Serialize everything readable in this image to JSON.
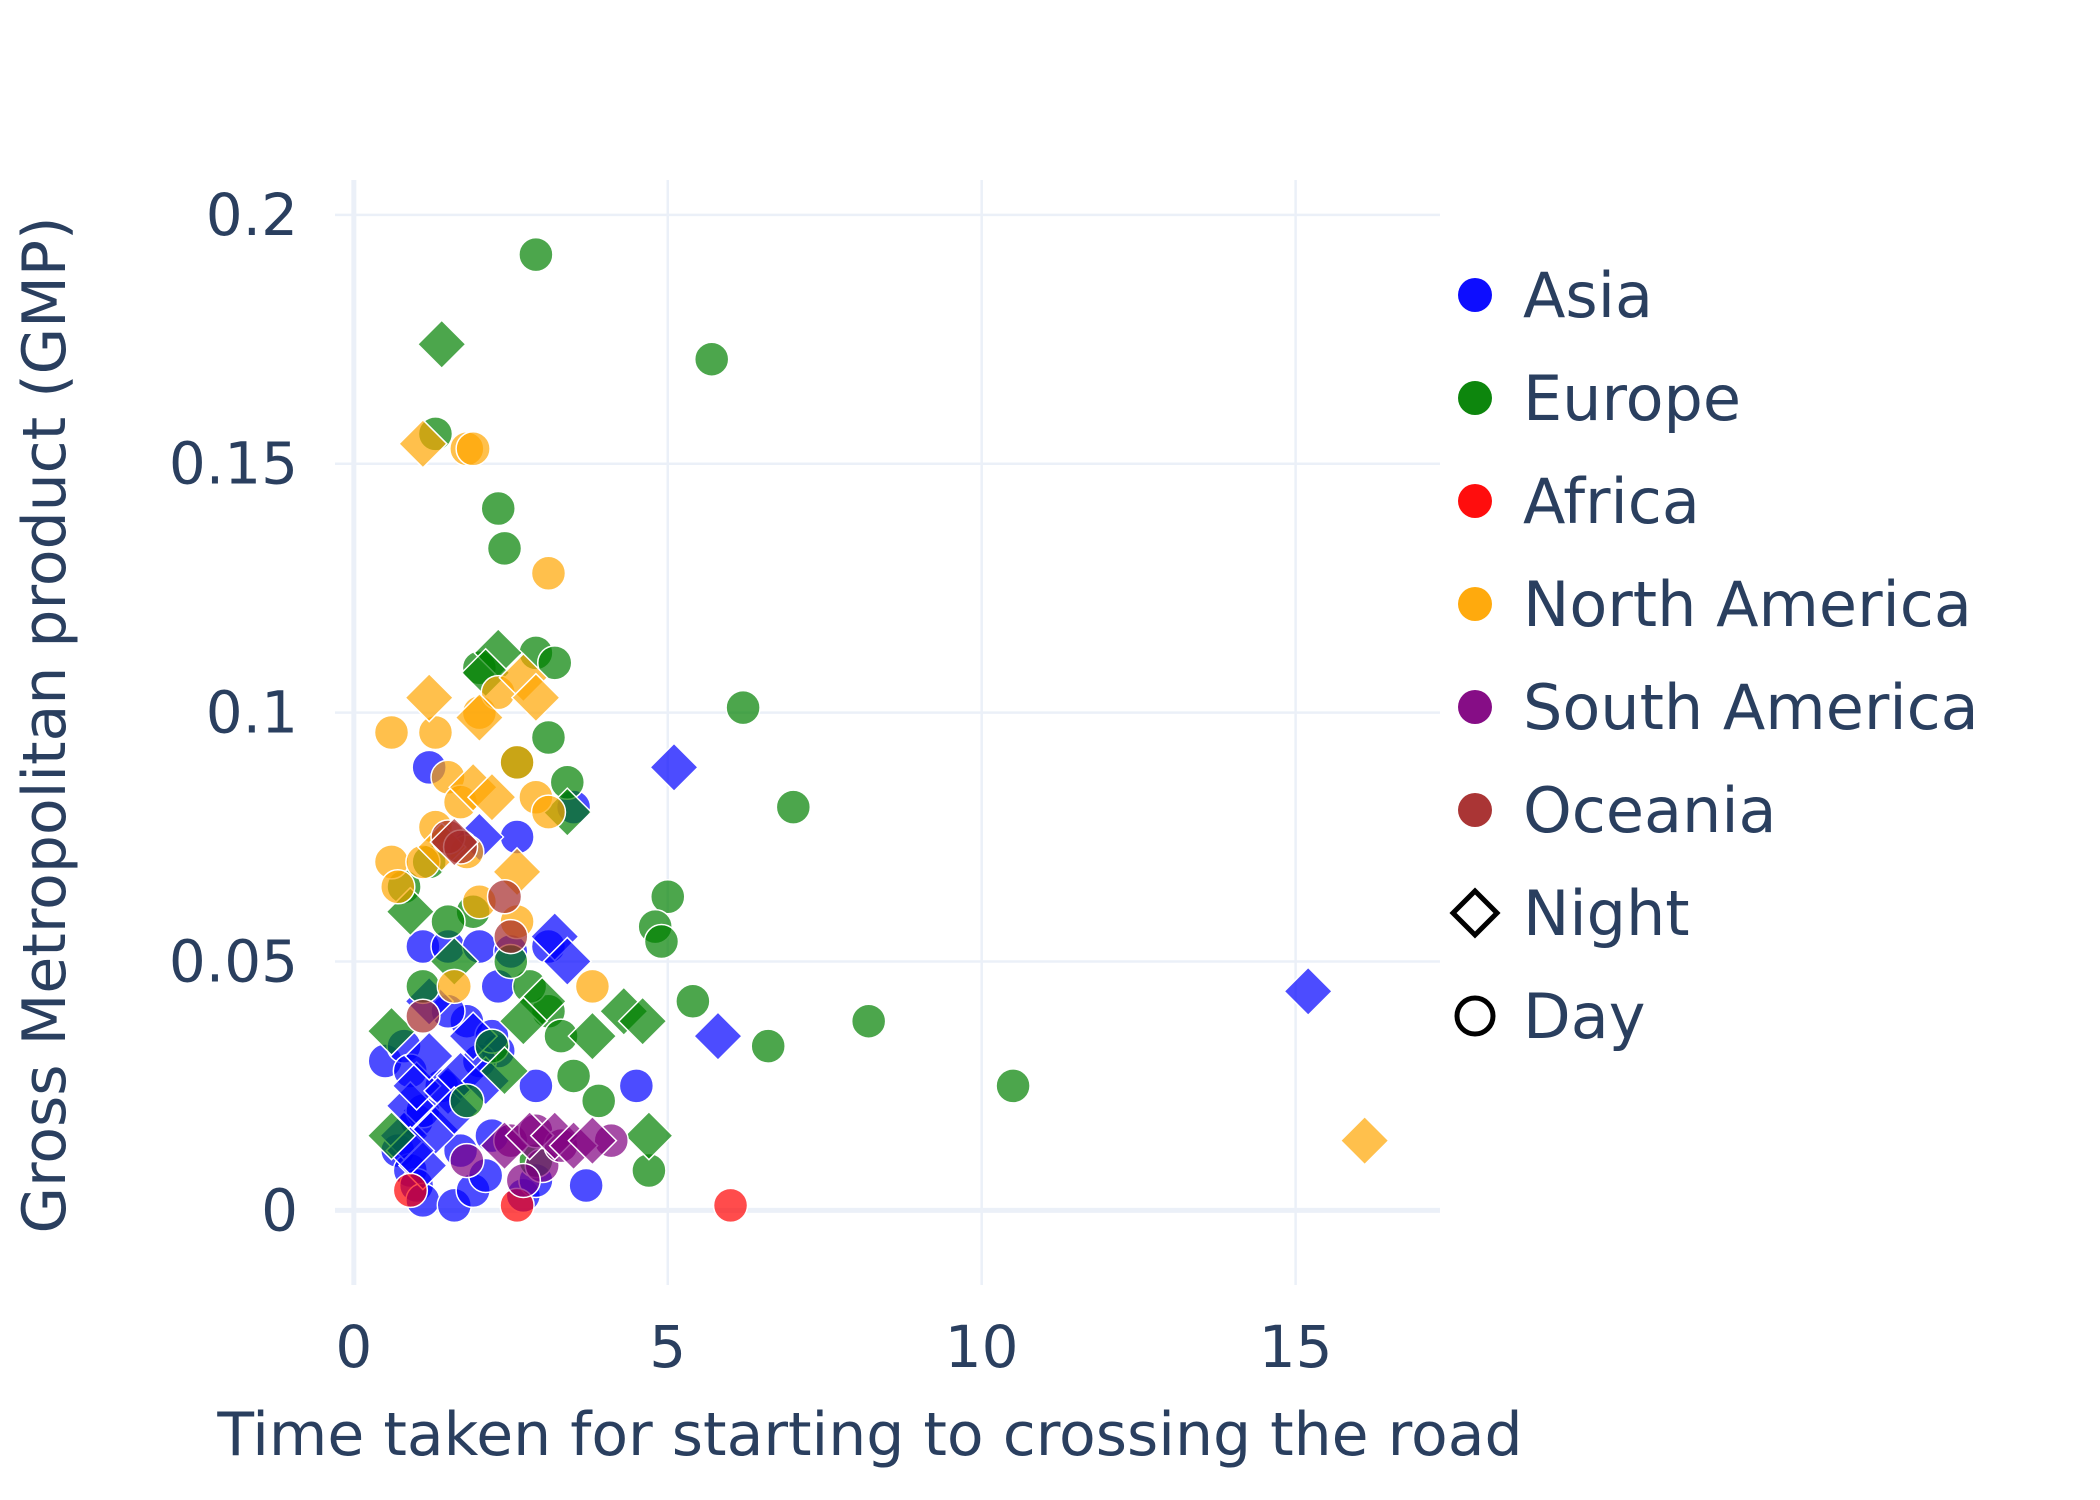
{
  "chart_data": {
    "type": "scatter",
    "title": "",
    "xlabel": "Time taken for starting to crossing the road",
    "ylabel": "Gross Metropolitan product (GMP)",
    "xlim": [
      -0.3,
      17.3
    ],
    "ylim": [
      -0.015,
      0.207
    ],
    "x_ticks": [
      0,
      5,
      10,
      15
    ],
    "y_ticks": [
      0,
      0.05,
      0.1,
      0.15,
      0.2
    ],
    "x_tick_labels": [
      "0",
      "5",
      "10",
      "15"
    ],
    "y_tick_labels": [
      "0",
      "0.05",
      "0.1",
      "0.15",
      "0.2"
    ],
    "grid": true,
    "legend_position": "right",
    "marker_opacity": 0.7,
    "symbol_legend": [
      {
        "name": "Night",
        "symbol": "diamond"
      },
      {
        "name": "Day",
        "symbol": "circle"
      }
    ],
    "series": [
      {
        "name": "Asia",
        "color": "#0000ff",
        "points": [
          [
            0.5,
            0.03,
            "circle"
          ],
          [
            0.8,
            0.033,
            "circle"
          ],
          [
            0.9,
            0.028,
            "circle"
          ],
          [
            1.0,
            0.018,
            "circle"
          ],
          [
            1.1,
            0.02,
            "circle"
          ],
          [
            0.7,
            0.012,
            "circle"
          ],
          [
            0.9,
            0.008,
            "circle"
          ],
          [
            1.0,
            0.005,
            "circle"
          ],
          [
            1.1,
            0.002,
            "circle"
          ],
          [
            1.2,
            0.089,
            "circle"
          ],
          [
            1.1,
            0.053,
            "circle"
          ],
          [
            1.5,
            0.053,
            "circle"
          ],
          [
            2.0,
            0.053,
            "circle"
          ],
          [
            1.8,
            0.038,
            "circle"
          ],
          [
            2.3,
            0.045,
            "circle"
          ],
          [
            2.5,
            0.052,
            "circle"
          ],
          [
            2.6,
            0.075,
            "circle"
          ],
          [
            2.3,
            0.032,
            "circle"
          ],
          [
            2.0,
            0.03,
            "circle"
          ],
          [
            1.6,
            0.001,
            "circle"
          ],
          [
            1.9,
            0.004,
            "circle"
          ],
          [
            2.1,
            0.007,
            "circle"
          ],
          [
            2.2,
            0.015,
            "circle"
          ],
          [
            2.7,
            0.003,
            "circle"
          ],
          [
            2.9,
            0.006,
            "circle"
          ],
          [
            2.9,
            0.025,
            "circle"
          ],
          [
            3.1,
            0.053,
            "circle"
          ],
          [
            3.5,
            0.081,
            "circle"
          ],
          [
            3.7,
            0.005,
            "circle"
          ],
          [
            4.5,
            0.025,
            "circle"
          ],
          [
            1.4,
            0.025,
            "circle"
          ],
          [
            1.7,
            0.012,
            "circle"
          ],
          [
            1.5,
            0.04,
            "circle"
          ],
          [
            2.2,
            0.035,
            "circle"
          ],
          [
            0.8,
            0.015,
            "diamond"
          ],
          [
            0.9,
            0.021,
            "diamond"
          ],
          [
            1.0,
            0.025,
            "diamond"
          ],
          [
            1.2,
            0.031,
            "diamond"
          ],
          [
            1.3,
            0.016,
            "diamond"
          ],
          [
            1.5,
            0.024,
            "diamond"
          ],
          [
            1.7,
            0.027,
            "diamond"
          ],
          [
            1.9,
            0.035,
            "diamond"
          ],
          [
            2.1,
            0.026,
            "diamond"
          ],
          [
            1.2,
            0.042,
            "diamond"
          ],
          [
            2.0,
            0.075,
            "diamond"
          ],
          [
            3.2,
            0.055,
            "diamond"
          ],
          [
            3.4,
            0.05,
            "diamond"
          ],
          [
            1.1,
            0.009,
            "diamond"
          ],
          [
            0.9,
            0.012,
            "diamond"
          ],
          [
            5.1,
            0.089,
            "diamond"
          ],
          [
            5.8,
            0.035,
            "diamond"
          ],
          [
            15.2,
            0.044,
            "diamond"
          ],
          [
            1.6,
            0.02,
            "diamond"
          ]
        ]
      },
      {
        "name": "Europe",
        "color": "#008000",
        "points": [
          [
            2.9,
            0.192,
            "circle"
          ],
          [
            5.7,
            0.171,
            "circle"
          ],
          [
            1.3,
            0.156,
            "circle"
          ],
          [
            2.3,
            0.141,
            "circle"
          ],
          [
            2.4,
            0.133,
            "circle"
          ],
          [
            2.9,
            0.112,
            "circle"
          ],
          [
            3.2,
            0.11,
            "circle"
          ],
          [
            2.0,
            0.109,
            "circle"
          ],
          [
            6.2,
            0.101,
            "circle"
          ],
          [
            3.1,
            0.095,
            "circle"
          ],
          [
            3.4,
            0.086,
            "circle"
          ],
          [
            7.0,
            0.081,
            "circle"
          ],
          [
            2.6,
            0.09,
            "circle"
          ],
          [
            5.0,
            0.063,
            "circle"
          ],
          [
            4.8,
            0.057,
            "circle"
          ],
          [
            4.9,
            0.054,
            "circle"
          ],
          [
            5.4,
            0.042,
            "circle"
          ],
          [
            8.2,
            0.038,
            "circle"
          ],
          [
            6.6,
            0.033,
            "circle"
          ],
          [
            10.5,
            0.025,
            "circle"
          ],
          [
            4.7,
            0.008,
            "circle"
          ],
          [
            3.9,
            0.022,
            "circle"
          ],
          [
            3.5,
            0.027,
            "circle"
          ],
          [
            3.1,
            0.04,
            "circle"
          ],
          [
            2.8,
            0.045,
            "circle"
          ],
          [
            2.5,
            0.05,
            "circle"
          ],
          [
            1.9,
            0.06,
            "circle"
          ],
          [
            1.5,
            0.058,
            "circle"
          ],
          [
            1.1,
            0.045,
            "circle"
          ],
          [
            0.8,
            0.065,
            "circle"
          ],
          [
            1.2,
            0.07,
            "circle"
          ],
          [
            2.2,
            0.033,
            "circle"
          ],
          [
            2.9,
            0.01,
            "circle"
          ],
          [
            3.3,
            0.035,
            "circle"
          ],
          [
            1.8,
            0.022,
            "circle"
          ],
          [
            1.4,
            0.174,
            "diamond"
          ],
          [
            2.3,
            0.112,
            "diamond"
          ],
          [
            2.1,
            0.108,
            "diamond"
          ],
          [
            3.4,
            0.08,
            "diamond"
          ],
          [
            0.6,
            0.036,
            "diamond"
          ],
          [
            4.3,
            0.04,
            "diamond"
          ],
          [
            4.6,
            0.038,
            "diamond"
          ],
          [
            4.7,
            0.015,
            "diamond"
          ],
          [
            3.8,
            0.035,
            "diamond"
          ],
          [
            3.0,
            0.042,
            "diamond"
          ],
          [
            2.7,
            0.038,
            "diamond"
          ],
          [
            0.9,
            0.06,
            "diamond"
          ],
          [
            1.6,
            0.05,
            "diamond"
          ],
          [
            2.4,
            0.028,
            "diamond"
          ],
          [
            0.6,
            0.015,
            "diamond"
          ]
        ]
      },
      {
        "name": "Africa",
        "color": "#ff0000",
        "points": [
          [
            6.0,
            0.001,
            "circle"
          ],
          [
            2.6,
            0.001,
            "circle"
          ],
          [
            0.9,
            0.004,
            "circle"
          ]
        ]
      },
      {
        "name": "North America",
        "color": "#ffa500",
        "points": [
          [
            1.8,
            0.153,
            "circle"
          ],
          [
            1.9,
            0.153,
            "circle"
          ],
          [
            3.1,
            0.128,
            "circle"
          ],
          [
            0.6,
            0.096,
            "circle"
          ],
          [
            1.3,
            0.096,
            "circle"
          ],
          [
            2.0,
            0.1,
            "circle"
          ],
          [
            2.3,
            0.104,
            "circle"
          ],
          [
            2.6,
            0.09,
            "circle"
          ],
          [
            1.5,
            0.087,
            "circle"
          ],
          [
            1.7,
            0.082,
            "circle"
          ],
          [
            0.6,
            0.07,
            "circle"
          ],
          [
            0.7,
            0.065,
            "circle"
          ],
          [
            1.1,
            0.07,
            "circle"
          ],
          [
            1.8,
            0.072,
            "circle"
          ],
          [
            2.0,
            0.062,
            "circle"
          ],
          [
            2.9,
            0.083,
            "circle"
          ],
          [
            3.1,
            0.08,
            "circle"
          ],
          [
            1.3,
            0.077,
            "circle"
          ],
          [
            2.6,
            0.058,
            "circle"
          ],
          [
            1.6,
            0.045,
            "circle"
          ],
          [
            3.8,
            0.045,
            "circle"
          ],
          [
            1.1,
            0.154,
            "diamond"
          ],
          [
            1.2,
            0.103,
            "diamond"
          ],
          [
            2.0,
            0.099,
            "diamond"
          ],
          [
            2.7,
            0.107,
            "diamond"
          ],
          [
            2.9,
            0.103,
            "diamond"
          ],
          [
            1.9,
            0.085,
            "diamond"
          ],
          [
            2.2,
            0.083,
            "diamond"
          ],
          [
            2.6,
            0.068,
            "diamond"
          ],
          [
            1.4,
            0.073,
            "diamond"
          ],
          [
            16.1,
            0.014,
            "diamond"
          ]
        ]
      },
      {
        "name": "South America",
        "color": "#800080",
        "points": [
          [
            1.8,
            0.01,
            "circle"
          ],
          [
            2.5,
            0.014,
            "circle"
          ],
          [
            2.9,
            0.016,
            "circle"
          ],
          [
            3.0,
            0.009,
            "circle"
          ],
          [
            3.3,
            0.013,
            "circle"
          ],
          [
            4.1,
            0.014,
            "circle"
          ],
          [
            2.7,
            0.006,
            "circle"
          ],
          [
            2.4,
            0.013,
            "diamond"
          ],
          [
            2.8,
            0.015,
            "diamond"
          ],
          [
            3.2,
            0.015,
            "diamond"
          ],
          [
            3.5,
            0.013,
            "diamond"
          ],
          [
            3.8,
            0.014,
            "diamond"
          ]
        ]
      },
      {
        "name": "Oceania",
        "color": "#a52a2a",
        "points": [
          [
            1.5,
            0.075,
            "circle"
          ],
          [
            1.7,
            0.073,
            "circle"
          ],
          [
            2.4,
            0.063,
            "circle"
          ],
          [
            2.5,
            0.055,
            "circle"
          ],
          [
            1.1,
            0.039,
            "circle"
          ],
          [
            1.6,
            0.074,
            "diamond"
          ]
        ]
      }
    ]
  }
}
